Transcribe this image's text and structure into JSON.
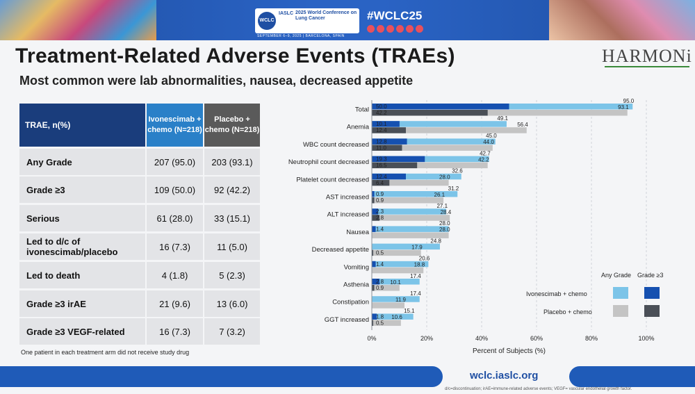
{
  "banner": {
    "org": "IASLC",
    "conference_name": "2025 World Conference on Lung Cancer",
    "dates_location": "SEPTEMBER 6–9, 2025 | BARCELONA, SPAIN",
    "hashtag": "#WCLC25"
  },
  "slide": {
    "title": "Treatment-Related Adverse Events (TRAEs)",
    "subtitle": "Most common were lab abnormalities, nausea, decreased appetite",
    "logo": "HARMONi"
  },
  "table": {
    "header_label": "TRAE, n(%)",
    "header_ivo": "Ivonescimab + chemo (N=218)",
    "header_placebo": "Placebo + chemo (N=218)",
    "rows": [
      {
        "label": "Any Grade",
        "ivo": "207 (95.0)",
        "placebo": "203 (93.1)"
      },
      {
        "label": "Grade ≥3",
        "ivo": "109 (50.0)",
        "placebo": "92 (42.2)"
      },
      {
        "label": "Serious",
        "ivo": "61 (28.0)",
        "placebo": "33 (15.1)"
      },
      {
        "label": "Led to d/c of ivonescimab/placebo",
        "ivo": "16 (7.3)",
        "placebo": "11 (5.0)"
      },
      {
        "label": "Led to death",
        "ivo": "4 (1.8)",
        "placebo": "5 (2.3)"
      },
      {
        "label": "Grade ≥3 irAE",
        "ivo": "21 (9.6)",
        "placebo": "13 (6.0)"
      },
      {
        "label": "Grade ≥3 VEGF-related",
        "ivo": "16 (7.3)",
        "placebo": "7 (3.2)"
      }
    ],
    "note": "One patient in each treatment arm did not receive study drug"
  },
  "chart_data": {
    "type": "bar",
    "orientation": "horizontal",
    "categories": [
      "Total",
      "Anemia",
      "WBC count decreased",
      "Neutrophil count decreased",
      "Platelet count decreased",
      "AST increased",
      "ALT increased",
      "Nausea",
      "Decreased appetite",
      "Vomiting",
      "Asthenia",
      "Constipation",
      "GGT increased"
    ],
    "series": [
      {
        "name": "Ivonescimab + chemo Any Grade",
        "color": "#7cc4e8",
        "values": [
          95.0,
          49.1,
          45.0,
          42.7,
          32.6,
          31.2,
          27.1,
          28.0,
          24.8,
          20.6,
          17.4,
          17.4,
          15.1
        ]
      },
      {
        "name": "Ivonescimab + chemo Grade ≥3",
        "color": "#1550b0",
        "values": [
          50.0,
          10.1,
          12.8,
          19.3,
          12.4,
          0.9,
          2.3,
          1.4,
          null,
          1.4,
          2.8,
          null,
          1.8
        ]
      },
      {
        "name": "Placebo + chemo Any Grade",
        "color": "#c4c4c4",
        "values": [
          93.1,
          56.4,
          44.0,
          42.2,
          28.0,
          26.1,
          28.4,
          28.0,
          17.9,
          18.8,
          10.1,
          11.9,
          10.6
        ]
      },
      {
        "name": "Placebo + chemo Grade ≥3",
        "color": "#4a4f57",
        "values": [
          42.2,
          12.4,
          11.0,
          16.5,
          6.4,
          0.9,
          2.8,
          null,
          0.5,
          null,
          0.9,
          null,
          0.5
        ]
      }
    ],
    "xlabel": "Percent of Subjects (%)",
    "xlim": [
      0,
      100
    ],
    "xticks": [
      "0%",
      "20%",
      "40%",
      "60%",
      "80%",
      "100%"
    ],
    "grid": true,
    "legend": {
      "position": "bottom-right",
      "col_any": "Any Grade",
      "col_g3": "Grade ≥3",
      "row_ivo": "Ivonescimab + chemo",
      "row_placebo": "Placebo + chemo"
    }
  },
  "footer": {
    "url": "wclc.iaslc.org",
    "abbreviations": "d/c=discontinuation; irAE=immune-related adverse events; VEGF= vascular endothelial growth factor."
  }
}
